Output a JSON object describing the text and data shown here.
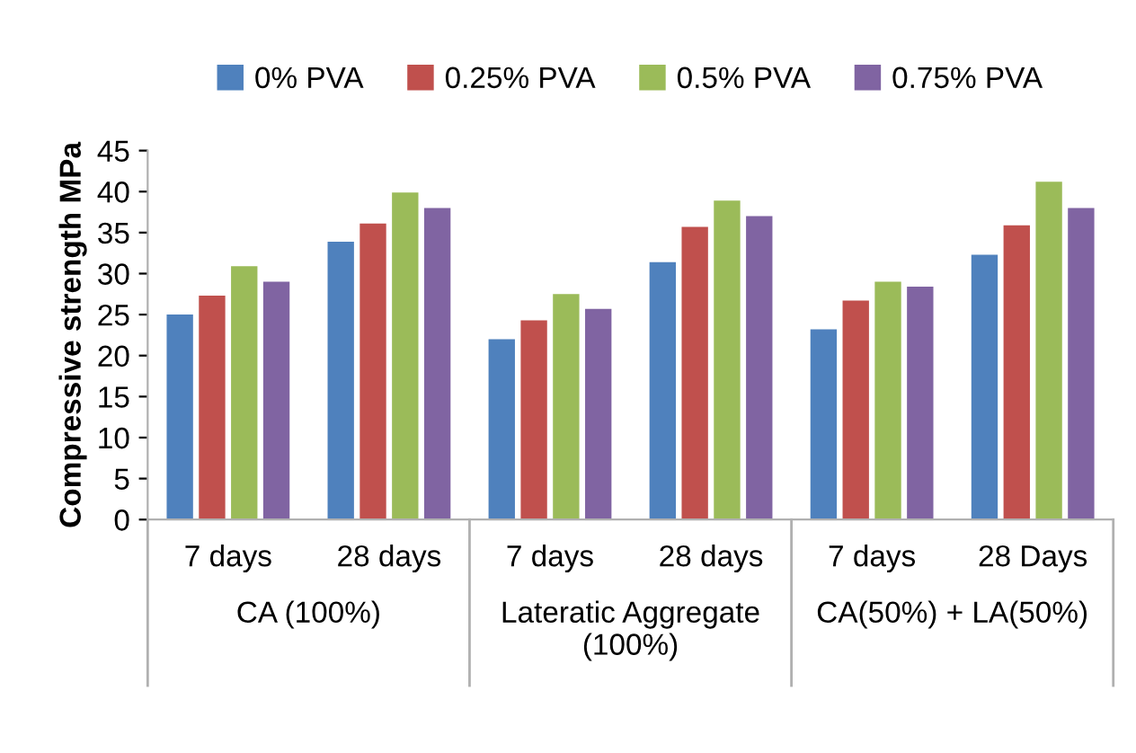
{
  "chart_data": {
    "type": "bar",
    "ylabel": "Compressive strength MPa",
    "categories": [
      "7 days",
      "28 days",
      "7 days",
      "28 days",
      "7 days",
      "28 Days"
    ],
    "annotations": [
      "CA (100%)",
      "Lateratic Aggregate\n(100%)",
      "CA(50%) + LA(50%)"
    ],
    "series": [
      {
        "name": "0% PVA",
        "color": "#4f81bd",
        "values": [
          25.0,
          33.9,
          22.0,
          31.4,
          23.2,
          32.3
        ]
      },
      {
        "name": "0.25% PVA",
        "color": "#c0504d",
        "values": [
          27.3,
          36.1,
          24.3,
          35.7,
          26.7,
          35.9
        ]
      },
      {
        "name": "0.5% PVA",
        "color": "#9bbb59",
        "values": [
          30.9,
          39.9,
          27.5,
          38.9,
          29.0,
          41.2
        ]
      },
      {
        "name": "0.75% PVA",
        "color": "#8064a2",
        "values": [
          29.0,
          38.0,
          25.7,
          37.0,
          28.4,
          38.0
        ]
      }
    ],
    "ylim": [
      0,
      45
    ],
    "yticks": [
      0,
      5,
      10,
      15,
      20,
      25,
      30,
      35,
      40,
      45
    ],
    "grid": false,
    "legend": "top"
  }
}
